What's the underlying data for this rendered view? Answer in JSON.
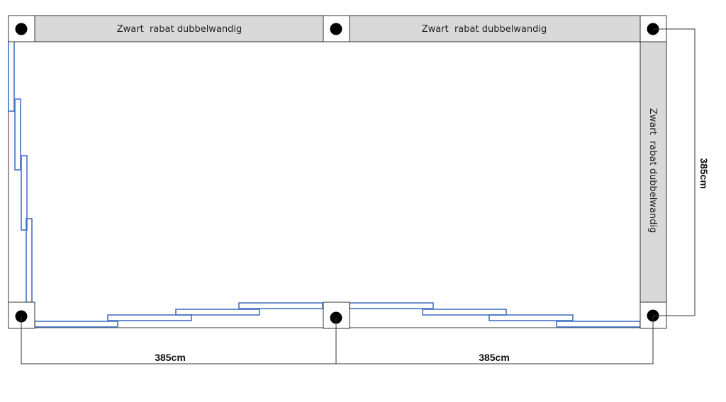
{
  "walls": {
    "top_left": "Zwart  rabat dubbelwandig",
    "top_right": "Zwart  rabat dubbelwandig",
    "right": "Zwart  rabat dubbelwandig"
  },
  "dimensions": {
    "bottom_left": "385cm",
    "bottom_right": "385cm",
    "right": "385cm"
  },
  "colors": {
    "wall_fill": "#d9d9d9",
    "sliding_panel": "#4472c4",
    "post": "#000000"
  }
}
